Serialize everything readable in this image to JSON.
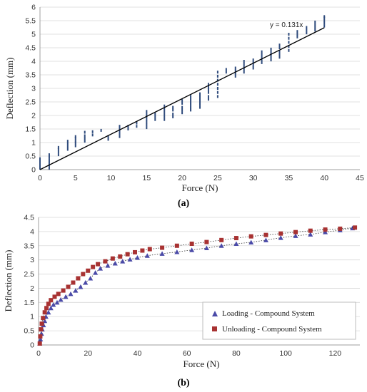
{
  "chart_data": [
    {
      "id": "a",
      "type": "scatter",
      "caption": "(a)",
      "xlabel": "Force (N)",
      "ylabel": "Deflection (mm)",
      "xlim": [
        0,
        45
      ],
      "ylim": [
        0,
        6
      ],
      "xticks": [
        0,
        5,
        10,
        15,
        20,
        25,
        30,
        35,
        40,
        45
      ],
      "yticks": [
        0,
        0.5,
        1,
        1.5,
        2,
        2.5,
        3,
        3.5,
        4,
        4.5,
        5,
        5.5,
        6
      ],
      "grid": "horizontal",
      "color": "#2f4b7c",
      "annotation": "y = 0.131x",
      "trend_slope": 0.131,
      "trend_range": [
        0,
        40
      ],
      "series": [
        {
          "points": [
            [
              0,
              0.05
            ],
            [
              0,
              0.1
            ],
            [
              0,
              0.18
            ],
            [
              0,
              0.25
            ],
            [
              0,
              0.32
            ],
            [
              0,
              0.4
            ],
            [
              1.3,
              0.05
            ],
            [
              1.3,
              0.15
            ],
            [
              1.3,
              0.25
            ],
            [
              1.3,
              0.35
            ],
            [
              1.3,
              0.45
            ],
            [
              1.3,
              0.55
            ],
            [
              2.6,
              0.55
            ],
            [
              2.6,
              0.65
            ],
            [
              2.6,
              0.75
            ],
            [
              2.6,
              0.82
            ],
            [
              3.9,
              0.75
            ],
            [
              3.9,
              0.85
            ],
            [
              3.9,
              0.95
            ],
            [
              3.9,
              1.05
            ],
            [
              5.0,
              0.88
            ],
            [
              5.0,
              0.98
            ],
            [
              5.0,
              1.05
            ],
            [
              5.0,
              1.15
            ],
            [
              5.0,
              1.22
            ],
            [
              6.3,
              1.05
            ],
            [
              6.3,
              1.15
            ],
            [
              6.3,
              1.25
            ],
            [
              6.3,
              1.38
            ],
            [
              7.4,
              1.28
            ],
            [
              7.4,
              1.4
            ],
            [
              8.6,
              1.45
            ],
            [
              9.6,
              1.12
            ],
            [
              9.6,
              1.22
            ],
            [
              11.2,
              1.22
            ],
            [
              11.2,
              1.32
            ],
            [
              11.2,
              1.42
            ],
            [
              11.2,
              1.52
            ],
            [
              11.2,
              1.6
            ],
            [
              12.4,
              1.5
            ],
            [
              12.4,
              1.6
            ],
            [
              13.6,
              1.6
            ],
            [
              13.6,
              1.72
            ],
            [
              15.0,
              1.55
            ],
            [
              15.0,
              1.65
            ],
            [
              15.0,
              1.75
            ],
            [
              15.0,
              1.85
            ],
            [
              15.0,
              1.95
            ],
            [
              15.0,
              2.05
            ],
            [
              15.0,
              2.15
            ],
            [
              16.2,
              1.85
            ],
            [
              16.2,
              1.95
            ],
            [
              16.2,
              2.05
            ],
            [
              17.5,
              1.85
            ],
            [
              17.5,
              1.95
            ],
            [
              17.5,
              2.05
            ],
            [
              17.5,
              2.15
            ],
            [
              17.5,
              2.25
            ],
            [
              17.5,
              2.35
            ],
            [
              18.7,
              1.95
            ],
            [
              18.7,
              2.05
            ],
            [
              18.7,
              2.2
            ],
            [
              18.7,
              2.3
            ],
            [
              20.0,
              2.1
            ],
            [
              20.0,
              2.2
            ],
            [
              20.0,
              2.3
            ],
            [
              20.0,
              2.45
            ],
            [
              20.0,
              2.55
            ],
            [
              21.2,
              2.2
            ],
            [
              21.2,
              2.3
            ],
            [
              21.2,
              2.4
            ],
            [
              21.2,
              2.5
            ],
            [
              21.2,
              2.6
            ],
            [
              21.2,
              2.7
            ],
            [
              22.5,
              2.3
            ],
            [
              22.5,
              2.4
            ],
            [
              22.5,
              2.5
            ],
            [
              22.5,
              2.6
            ],
            [
              22.5,
              2.7
            ],
            [
              22.5,
              2.8
            ],
            [
              23.7,
              2.6
            ],
            [
              23.7,
              2.7
            ],
            [
              23.7,
              2.85
            ],
            [
              23.7,
              2.95
            ],
            [
              23.7,
              3.05
            ],
            [
              23.7,
              3.15
            ],
            [
              25.0,
              2.7
            ],
            [
              25.0,
              2.85
            ],
            [
              25.0,
              3.0
            ],
            [
              25.0,
              3.15
            ],
            [
              25.0,
              3.3
            ],
            [
              25.0,
              3.45
            ],
            [
              25.0,
              3.6
            ],
            [
              26.2,
              3.6
            ],
            [
              26.2,
              3.7
            ],
            [
              27.5,
              3.45
            ],
            [
              27.5,
              3.55
            ],
            [
              27.5,
              3.65
            ],
            [
              27.5,
              3.75
            ],
            [
              28.7,
              3.6
            ],
            [
              28.7,
              3.7
            ],
            [
              28.7,
              3.8
            ],
            [
              28.7,
              3.9
            ],
            [
              28.7,
              4.0
            ],
            [
              30.0,
              3.75
            ],
            [
              30.0,
              3.85
            ],
            [
              30.0,
              3.95
            ],
            [
              30.0,
              4.05
            ],
            [
              31.2,
              3.95
            ],
            [
              31.2,
              4.05
            ],
            [
              31.2,
              4.15
            ],
            [
              31.2,
              4.25
            ],
            [
              31.2,
              4.35
            ],
            [
              32.5,
              4.05
            ],
            [
              32.5,
              4.15
            ],
            [
              32.5,
              4.25
            ],
            [
              32.5,
              4.35
            ],
            [
              32.5,
              4.45
            ],
            [
              33.7,
              4.15
            ],
            [
              33.7,
              4.25
            ],
            [
              33.7,
              4.35
            ],
            [
              33.7,
              4.5
            ],
            [
              33.7,
              4.6
            ],
            [
              35.0,
              4.4
            ],
            [
              35.0,
              4.55
            ],
            [
              35.0,
              4.7
            ],
            [
              35.0,
              4.85
            ],
            [
              35.0,
              5.0
            ],
            [
              36.2,
              4.9
            ],
            [
              36.2,
              5.0
            ],
            [
              36.2,
              5.1
            ],
            [
              37.5,
              5.05
            ],
            [
              37.5,
              5.15
            ],
            [
              37.5,
              5.25
            ],
            [
              38.7,
              5.15
            ],
            [
              38.7,
              5.25
            ],
            [
              38.7,
              5.35
            ],
            [
              38.7,
              5.45
            ],
            [
              40.0,
              5.3
            ],
            [
              40.0,
              5.4
            ],
            [
              40.0,
              5.5
            ],
            [
              40.0,
              5.6
            ],
            [
              40.0,
              5.65
            ]
          ]
        }
      ]
    },
    {
      "id": "b",
      "type": "scatter",
      "caption": "(b)",
      "xlabel": "Force (N)",
      "ylabel": "Deflection (mm)",
      "xlim": [
        0,
        130
      ],
      "ylim": [
        0,
        4.5
      ],
      "xticks": [
        0,
        20,
        40,
        60,
        80,
        100,
        120
      ],
      "yticks": [
        0,
        0.5,
        1,
        1.5,
        2,
        2.5,
        3,
        3.5,
        4,
        4.5
      ],
      "grid": "horizontal",
      "legend_position": "bottom-right",
      "series": [
        {
          "name": "Loading - Compound System",
          "marker": "triangle",
          "color": "#4a4aa8",
          "points": [
            [
              0.5,
              0.05
            ],
            [
              0.8,
              0.2
            ],
            [
              1.2,
              0.4
            ],
            [
              1.5,
              0.55
            ],
            [
              2,
              0.7
            ],
            [
              2.5,
              0.85
            ],
            [
              3,
              1.0
            ],
            [
              4,
              1.15
            ],
            [
              5,
              1.3
            ],
            [
              6,
              1.42
            ],
            [
              7.5,
              1.5
            ],
            [
              9,
              1.6
            ],
            [
              11,
              1.7
            ],
            [
              13,
              1.8
            ],
            [
              15,
              1.92
            ],
            [
              17,
              2.05
            ],
            [
              19,
              2.2
            ],
            [
              21,
              2.35
            ],
            [
              23,
              2.55
            ],
            [
              25,
              2.7
            ],
            [
              28,
              2.8
            ],
            [
              31,
              2.88
            ],
            [
              34,
              2.95
            ],
            [
              37,
              3.02
            ],
            [
              40,
              3.08
            ],
            [
              44,
              3.15
            ],
            [
              50,
              3.22
            ],
            [
              56,
              3.28
            ],
            [
              62,
              3.35
            ],
            [
              68,
              3.42
            ],
            [
              74,
              3.5
            ],
            [
              80,
              3.57
            ],
            [
              86,
              3.62
            ],
            [
              92,
              3.7
            ],
            [
              98,
              3.78
            ],
            [
              104,
              3.85
            ],
            [
              110,
              3.9
            ],
            [
              116,
              3.98
            ],
            [
              122,
              4.05
            ],
            [
              127,
              4.12
            ]
          ]
        },
        {
          "name": "Unloading - Compound System",
          "marker": "square",
          "color": "#a83232",
          "points": [
            [
              0.5,
              0.05
            ],
            [
              0.7,
              0.3
            ],
            [
              1,
              0.55
            ],
            [
              1.3,
              0.75
            ],
            [
              1.8,
              0.95
            ],
            [
              2.5,
              1.15
            ],
            [
              3.2,
              1.3
            ],
            [
              4,
              1.45
            ],
            [
              5,
              1.58
            ],
            [
              6.5,
              1.7
            ],
            [
              8,
              1.8
            ],
            [
              10,
              1.92
            ],
            [
              12,
              2.05
            ],
            [
              14,
              2.2
            ],
            [
              16,
              2.35
            ],
            [
              18,
              2.5
            ],
            [
              20,
              2.62
            ],
            [
              22,
              2.75
            ],
            [
              24,
              2.85
            ],
            [
              27,
              2.95
            ],
            [
              30,
              3.05
            ],
            [
              33,
              3.12
            ],
            [
              36,
              3.2
            ],
            [
              39,
              3.27
            ],
            [
              42,
              3.33
            ],
            [
              45,
              3.38
            ],
            [
              50,
              3.43
            ],
            [
              56,
              3.5
            ],
            [
              62,
              3.57
            ],
            [
              68,
              3.63
            ],
            [
              74,
              3.7
            ],
            [
              80,
              3.77
            ],
            [
              86,
              3.83
            ],
            [
              92,
              3.88
            ],
            [
              98,
              3.93
            ],
            [
              104,
              3.98
            ],
            [
              110,
              4.03
            ],
            [
              116,
              4.07
            ],
            [
              122,
              4.1
            ],
            [
              128,
              4.14
            ]
          ]
        }
      ]
    }
  ]
}
